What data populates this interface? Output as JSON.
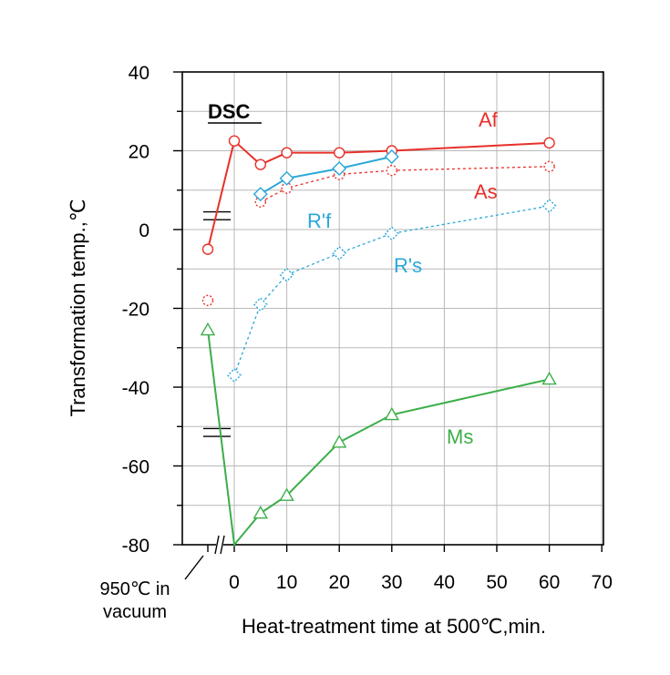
{
  "chart_data": {
    "type": "line",
    "annotation": "DSC",
    "xlabel": "Heat-treatment time at 500℃,min.",
    "ylabel": "Transformation temp.,℃",
    "xlim": [
      0,
      70
    ],
    "ylim": [
      -80,
      40
    ],
    "x_ticks": [
      "0",
      "10",
      "20",
      "30",
      "40",
      "50",
      "60",
      "70"
    ],
    "y_ticks": [
      "40",
      "20",
      "0",
      "-20",
      "-40",
      "-60",
      "-80"
    ],
    "reference_label_line1": "950℃ in",
    "reference_label_line2": "vacuum",
    "grid": true,
    "colors": {
      "red": "#e8302a",
      "blue": "#2aa7d8",
      "green": "#3cae49"
    },
    "series": [
      {
        "name": "Af",
        "color": "#e8302a",
        "marker": "circle",
        "dashed": false,
        "reference": -5,
        "x": [
          0,
          5,
          10,
          20,
          30,
          60
        ],
        "y": [
          22.5,
          16.5,
          19.5,
          19.5,
          20,
          22
        ]
      },
      {
        "name": "As",
        "color": "#e8302a",
        "marker": "circle",
        "dashed": true,
        "reference": -18,
        "x": [
          5,
          10,
          20,
          30,
          60
        ],
        "y": [
          7,
          10.5,
          14,
          15,
          16
        ]
      },
      {
        "name": "R'f",
        "color": "#2aa7d8",
        "marker": "diamond",
        "dashed": false,
        "reference": null,
        "x": [
          5,
          10,
          20,
          30
        ],
        "y": [
          9,
          13,
          15.5,
          18.5
        ]
      },
      {
        "name": "R's",
        "color": "#2aa7d8",
        "marker": "diamond",
        "dashed": true,
        "reference": null,
        "x": [
          0,
          5,
          10,
          20,
          30,
          60
        ],
        "y": [
          -37,
          -19,
          -11.5,
          -6,
          -1,
          6
        ]
      },
      {
        "name": "Ms",
        "color": "#3cae49",
        "marker": "triangle",
        "dashed": false,
        "reference": -25.5,
        "x": [
          0,
          5,
          10,
          20,
          30,
          60
        ],
        "y": [
          -80,
          -72,
          -67.5,
          -54,
          -47,
          -38
        ]
      }
    ]
  }
}
